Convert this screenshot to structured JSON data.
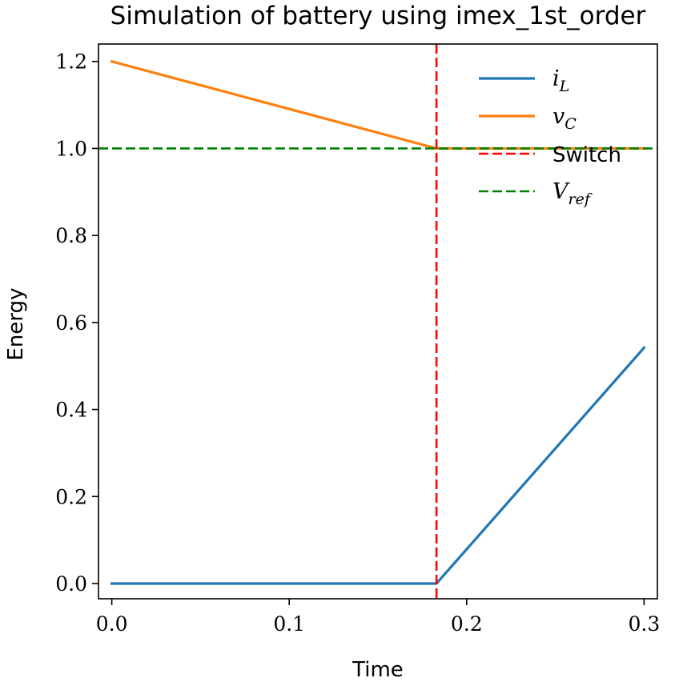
{
  "chart_data": {
    "type": "line",
    "title": "Simulation of battery using imex_1st_order",
    "xlabel": "Time",
    "ylabel": "Energy",
    "xlim": [
      -0.0075,
      0.3075
    ],
    "ylim": [
      -0.035,
      1.24
    ],
    "xticks": [
      0.0,
      0.1,
      0.2,
      0.3
    ],
    "xtick_labels": [
      "0.0",
      "0.1",
      "0.2",
      "0.3"
    ],
    "yticks": [
      0.0,
      0.2,
      0.4,
      0.6,
      0.8,
      1.0,
      1.2
    ],
    "ytick_labels": [
      "0.0",
      "0.2",
      "0.4",
      "0.6",
      "0.8",
      "1.0",
      "1.2"
    ],
    "grid": false,
    "legend_position": "top-right",
    "series": [
      {
        "name": "i_L",
        "legend_main": "i",
        "legend_sub": "L",
        "color": "#1f77b4",
        "style": "solid",
        "x": [
          0.0,
          0.183,
          0.3
        ],
        "y": [
          0.0,
          0.0,
          0.542
        ]
      },
      {
        "name": "v_C",
        "legend_main": "v",
        "legend_sub": "C",
        "color": "#ff7f0e",
        "style": "solid",
        "x": [
          0.0,
          0.183,
          0.3
        ],
        "y": [
          1.2,
          1.0,
          1.0
        ]
      }
    ],
    "reference_lines": [
      {
        "name": "Switch",
        "legend_text": "Switch",
        "orientation": "vertical",
        "value": 0.183,
        "color": "#ff0000",
        "style": "dashed"
      },
      {
        "name": "V_ref",
        "legend_main": "V",
        "legend_sub": "ref",
        "orientation": "horizontal",
        "value": 1.0,
        "color": "#008000",
        "style": "dashed"
      }
    ]
  }
}
